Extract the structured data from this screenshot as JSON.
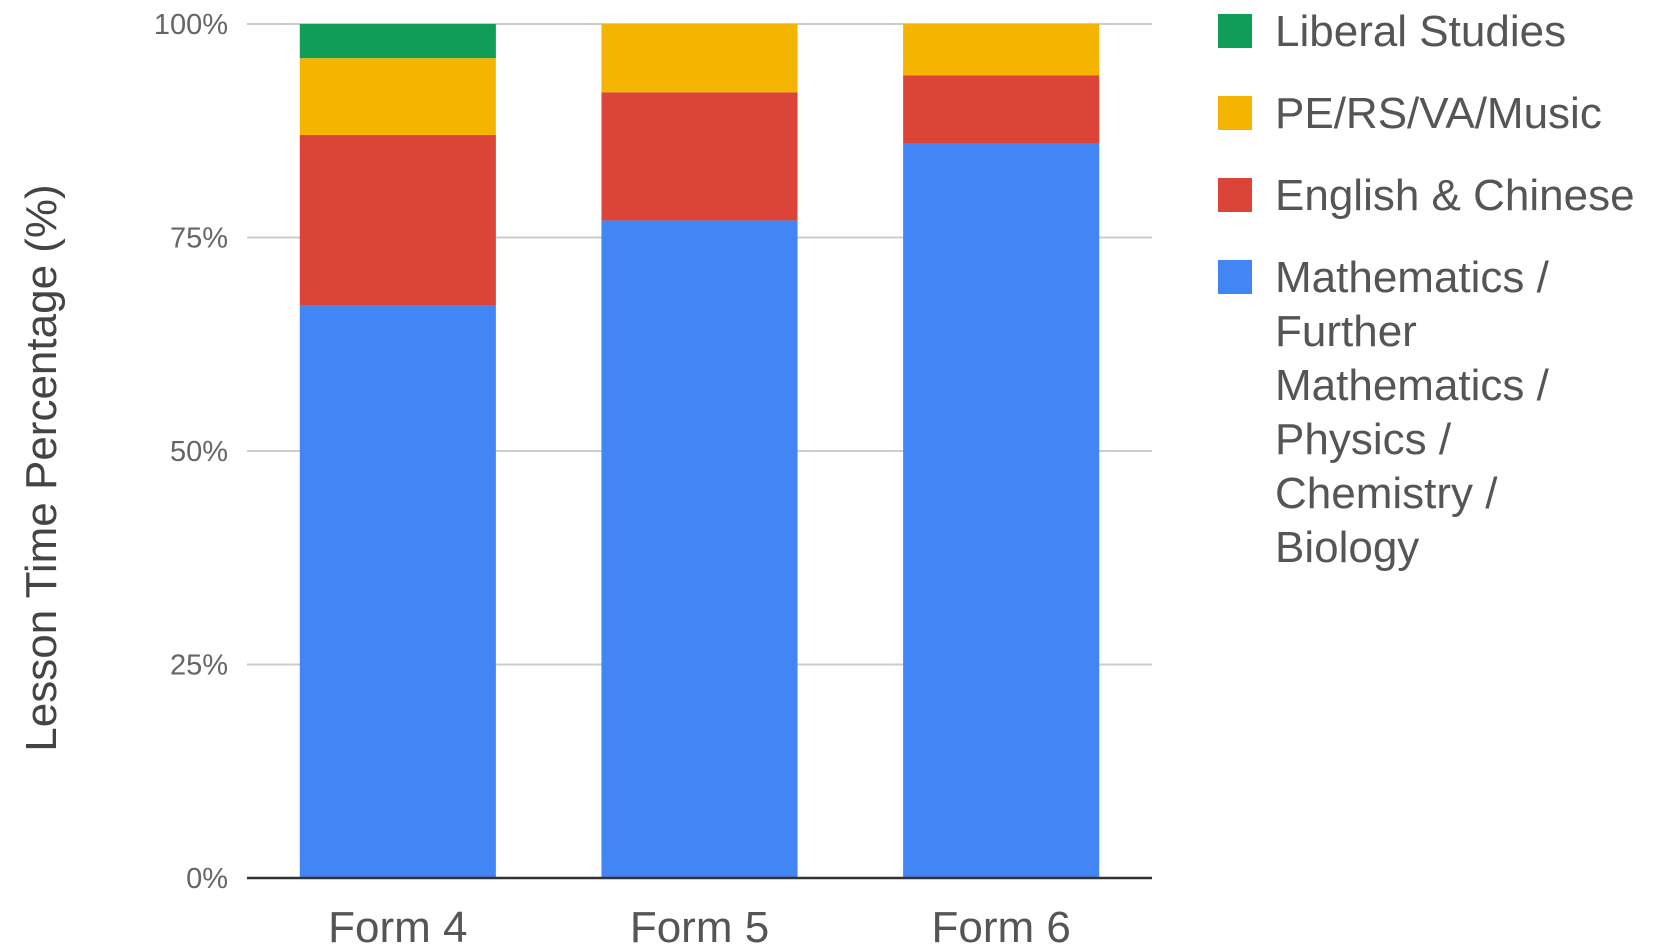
{
  "chart_data": {
    "type": "bar",
    "stacked": true,
    "normalized": true,
    "categories": [
      "Form 4",
      "Form 5",
      "Form 6"
    ],
    "series": [
      {
        "name": "Mathematics / Further Mathematics / Physics / Chemistry / Biology",
        "legend_lines": [
          "Mathematics /",
          "Further",
          "Mathematics /",
          "Physics /",
          "Chemistry /",
          "Biology"
        ],
        "values": [
          67,
          77,
          86
        ],
        "color": "#4285F4"
      },
      {
        "name": "English & Chinese",
        "legend_lines": [
          "English & Chinese"
        ],
        "values": [
          20,
          15,
          8
        ],
        "color": "#DB4437"
      },
      {
        "name": "PE/RS/VA/Music",
        "legend_lines": [
          "PE/RS/VA/Music"
        ],
        "values": [
          9,
          8,
          6
        ],
        "color": "#F4B400"
      },
      {
        "name": "Liberal Studies",
        "legend_lines": [
          "Liberal Studies"
        ],
        "values": [
          4,
          0,
          0
        ],
        "color": "#0F9D58"
      }
    ],
    "ylabel": "Lesson Time Percentage (%)",
    "xlabel": "",
    "ylim": [
      0,
      100
    ],
    "yticks": [
      0,
      25,
      50,
      75,
      100
    ],
    "ytick_labels": [
      "0%",
      "25%",
      "50%",
      "75%",
      "100%"
    ],
    "grid": true,
    "legend_position": "right"
  }
}
